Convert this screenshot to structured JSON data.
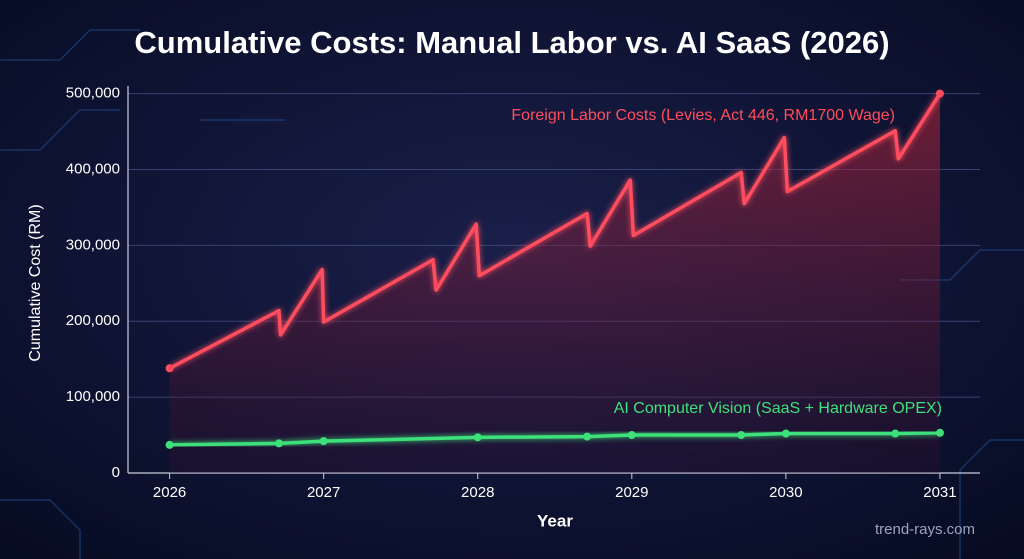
{
  "chart_data": {
    "type": "line",
    "title": "Cumulative Costs: Manual Labor vs. AI SaaS (2026)",
    "x_label": "Year",
    "y_label": "Cumulative Cost (RM)",
    "xlim": [
      2025.73,
      2031.26
    ],
    "xticks": [
      2026,
      2027,
      2028,
      2029,
      2030,
      2031
    ],
    "ylim": [
      0,
      510000
    ],
    "yticks": [
      0,
      {
        "value": 100000,
        "label": "100,000"
      },
      {
        "value": 200000,
        "label": "200,000"
      },
      {
        "value": 300000,
        "label": "300,000"
      },
      {
        "value": 400000,
        "label": "400,000"
      },
      {
        "value": 500000,
        "label": "500,000"
      }
    ],
    "grid": true,
    "series": [
      {
        "name": "Foreign Labor Costs (Levies, Act 446, RM1700 Wage)",
        "color": "#ff4d5e",
        "x": [
          2026,
          2026.71,
          2026.72,
          2026.99,
          2027.0,
          2027.71,
          2027.73,
          2027.99,
          2028.01,
          2028.71,
          2028.73,
          2028.99,
          2029.01,
          2029.71,
          2029.73,
          2029.99,
          2030.01,
          2030.71,
          2030.73,
          2031
        ],
        "values": [
          138000,
          214000,
          182000,
          268000,
          199000,
          281000,
          241000,
          328000,
          260000,
          342000,
          299000,
          386000,
          313000,
          396000,
          355000,
          442000,
          371000,
          451000,
          414000,
          500000
        ]
      },
      {
        "name": "AI Computer Vision (SaaS + Hardware OPEX)",
        "color": "#3ee07a",
        "x": [
          2026,
          2026.71,
          2027.0,
          2028.0,
          2028.71,
          2029.0,
          2029.71,
          2030.0,
          2030.71,
          2031
        ],
        "values": [
          37000,
          39000,
          42000,
          47000,
          48000,
          50000,
          50000,
          52000,
          52000,
          53000
        ]
      }
    ],
    "watermark": "trend-rays.com"
  }
}
